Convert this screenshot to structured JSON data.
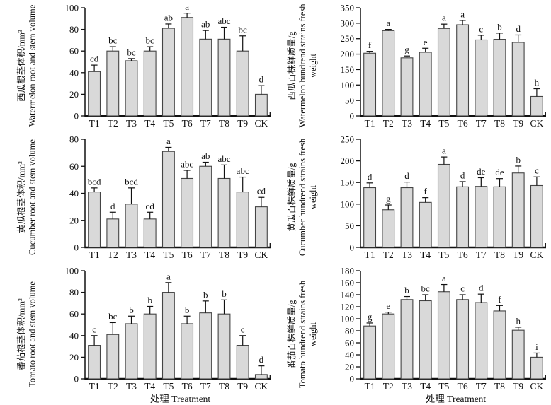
{
  "figure": {
    "xlabel": "处理 Treatment",
    "categories": [
      "T1",
      "T2",
      "T3",
      "T4",
      "T5",
      "T6",
      "T7",
      "T8",
      "T9",
      "CK"
    ],
    "colors": {
      "bar_fill": "#d9d9d9",
      "bar_stroke": "#444444",
      "axis": "#111111",
      "text": "#111111",
      "background": "#ffffff"
    }
  },
  "chart_data": [
    {
      "type": "bar",
      "panel": "top-left",
      "ylabel_cn": "西瓜根茎体积/mm³",
      "ylabel_en": "Watermelon root and stem volume",
      "ylim": [
        0,
        100
      ],
      "ytick_step": 20,
      "categories": [
        "T1",
        "T2",
        "T3",
        "T4",
        "T5",
        "T6",
        "T7",
        "T8",
        "T9",
        "CK"
      ],
      "values": [
        41,
        60,
        51,
        60,
        81,
        91,
        71,
        71,
        60,
        20
      ],
      "errors": [
        6,
        4,
        2,
        4,
        4,
        4,
        8,
        11,
        14,
        8
      ],
      "sig_letters": [
        "cd",
        "bc",
        "bc",
        "bc",
        "ab",
        "a",
        "ab",
        "abc",
        "bc",
        "d"
      ]
    },
    {
      "type": "bar",
      "panel": "top-right",
      "ylabel_cn": "西瓜百株鲜质量/g",
      "ylabel_en": "Watermelon hundrend strains fresh weight",
      "ylim": [
        0,
        350
      ],
      "ytick_step": 50,
      "categories": [
        "T1",
        "T2",
        "T3",
        "T4",
        "T5",
        "T6",
        "T7",
        "T8",
        "T9",
        "CK"
      ],
      "values": [
        203,
        276,
        188,
        206,
        283,
        295,
        246,
        248,
        238,
        63
      ],
      "errors": [
        6,
        4,
        6,
        13,
        14,
        14,
        15,
        20,
        24,
        25
      ],
      "sig_letters": [
        "f",
        "a",
        "g",
        "e",
        "a",
        "a",
        "c",
        "b",
        "d",
        "h"
      ]
    },
    {
      "type": "bar",
      "panel": "middle-left",
      "ylabel_cn": "黄瓜根茎体积/mm³",
      "ylabel_en": "Cucumber root and stem volume",
      "ylim": [
        0,
        80
      ],
      "ytick_step": 20,
      "categories": [
        "T1",
        "T2",
        "T3",
        "T4",
        "T5",
        "T6",
        "T7",
        "T8",
        "T9",
        "CK"
      ],
      "values": [
        41,
        21,
        32,
        21,
        71,
        51,
        60,
        51,
        41,
        30
      ],
      "errors": [
        3,
        5,
        12,
        5,
        3,
        6,
        3,
        10,
        11,
        7
      ],
      "sig_letters": [
        "bcd",
        "d",
        "bcd",
        "cd",
        "a",
        "abc",
        "ab",
        "abc",
        "abc",
        "cd"
      ]
    },
    {
      "type": "bar",
      "panel": "middle-right",
      "ylabel_cn": "黄瓜百株鲜质量/g",
      "ylabel_en": "Cucumber hundrend strains fresh weight",
      "ylim": [
        0,
        250
      ],
      "ytick_step": 50,
      "categories": [
        "T1",
        "T2",
        "T3",
        "T4",
        "T5",
        "T6",
        "T7",
        "T8",
        "T9",
        "CK"
      ],
      "values": [
        138,
        87,
        138,
        104,
        192,
        140,
        141,
        140,
        172,
        143
      ],
      "errors": [
        11,
        11,
        13,
        11,
        17,
        12,
        20,
        19,
        16,
        20
      ],
      "sig_letters": [
        "d",
        "g",
        "d",
        "f",
        "a",
        "d",
        "de",
        "de",
        "b",
        "c"
      ]
    },
    {
      "type": "bar",
      "panel": "bottom-left",
      "ylabel_cn": "番茄根茎体积/mm³",
      "ylabel_en": "Tomato root and stem volume",
      "ylim": [
        0,
        100
      ],
      "ytick_step": 20,
      "categories": [
        "T1",
        "T2",
        "T3",
        "T4",
        "T5",
        "T6",
        "T7",
        "T8",
        "T9",
        "CK"
      ],
      "values": [
        31,
        41,
        51,
        60,
        80,
        51,
        61,
        60,
        31,
        4
      ],
      "errors": [
        9,
        11,
        7,
        7,
        9,
        7,
        11,
        13,
        9,
        8
      ],
      "sig_letters": [
        "c",
        "bc",
        "b",
        "b",
        "a",
        "b",
        "b",
        "b",
        "c",
        "d"
      ]
    },
    {
      "type": "bar",
      "panel": "bottom-right",
      "ylabel_cn": "番茄百株鲜质量/g",
      "ylabel_en": "Tomato hundrend strains fresh weight",
      "ylim": [
        0,
        180
      ],
      "ytick_step": 20,
      "categories": [
        "T1",
        "T2",
        "T3",
        "T4",
        "T5",
        "T6",
        "T7",
        "T8",
        "T9",
        "CK"
      ],
      "values": [
        88,
        108,
        132,
        130,
        145,
        132,
        127,
        113,
        81,
        36
      ],
      "errors": [
        5,
        3,
        5,
        10,
        12,
        8,
        14,
        9,
        5,
        7
      ],
      "sig_letters": [
        "g",
        "e",
        "b",
        "bc",
        "a",
        "c",
        "d",
        "f",
        "h",
        "i"
      ]
    }
  ]
}
